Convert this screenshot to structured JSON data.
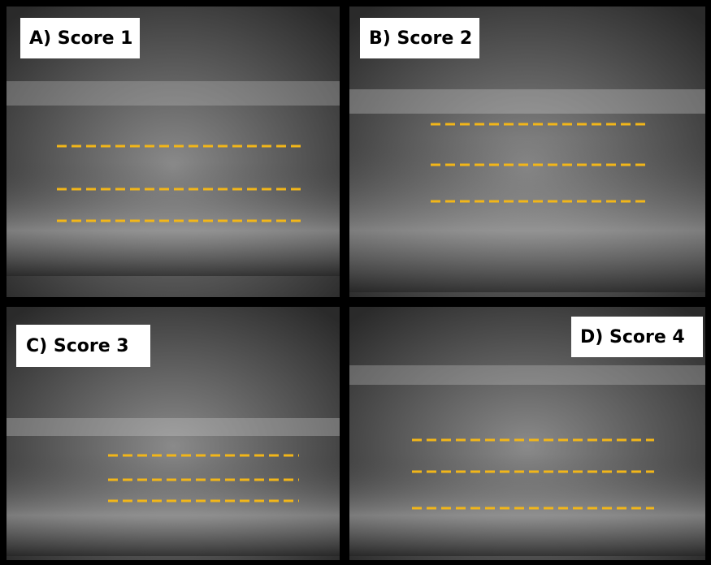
{
  "panels": [
    {
      "label": "A) Score 1"
    },
    {
      "label": "B) Score 2"
    },
    {
      "label": "C) Score 3"
    },
    {
      "label": "D) Score 4"
    }
  ]
}
